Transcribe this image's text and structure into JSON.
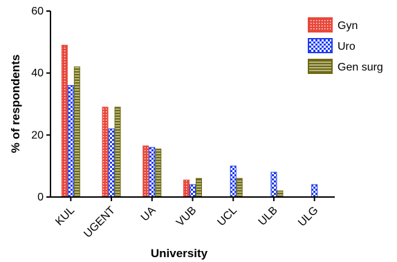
{
  "chart_data": {
    "type": "bar",
    "title": "",
    "xlabel": "University",
    "ylabel": "% of respondents",
    "ylim": [
      0,
      60
    ],
    "yticks": [
      0,
      20,
      40,
      60
    ],
    "categories": [
      "KUL",
      "UGENT",
      "UA",
      "VUB",
      "UCL",
      "ULB",
      "ULG"
    ],
    "series": [
      {
        "name": "Gyn",
        "color": "#e8483b",
        "values": [
          49,
          29,
          16.5,
          5.5,
          0,
          0,
          0
        ]
      },
      {
        "name": "Uro",
        "color": "#1f3df0",
        "values": [
          36,
          22,
          16,
          4,
          10,
          8,
          4
        ]
      },
      {
        "name": "Gen surg",
        "color": "#6e6a12",
        "values": [
          42,
          29,
          15.5,
          6,
          6,
          2,
          0
        ]
      }
    ],
    "legend_position": "top-right",
    "grid": false
  }
}
